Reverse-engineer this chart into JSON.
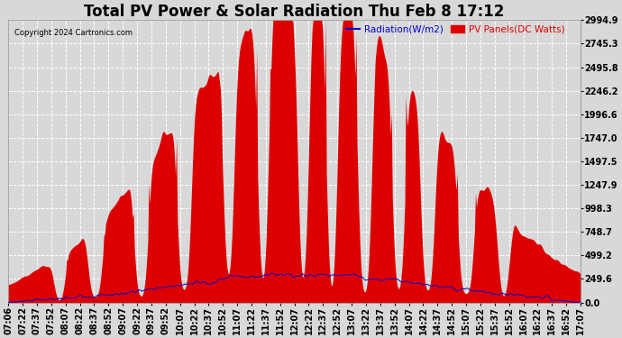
{
  "title": "Total PV Power & Solar Radiation Thu Feb 8 17:12",
  "copyright": "Copyright 2024 Cartronics.com",
  "legend_radiation": "Radiation(W/m2)",
  "legend_pv": "PV Panels(DC Watts)",
  "yticks": [
    0.0,
    249.6,
    499.2,
    748.7,
    998.3,
    1247.9,
    1497.5,
    1747.0,
    1996.6,
    2246.2,
    2495.8,
    2745.3,
    2994.9
  ],
  "ymax": 2994.9,
  "ymin": 0.0,
  "bar_color": "#dd0000",
  "line_color": "#0000cc",
  "background_color": "#d8d8d8",
  "grid_color": "#ffffff",
  "title_fontsize": 12,
  "tick_fontsize": 7,
  "time_labels": [
    "07:06",
    "07:22",
    "07:37",
    "07:52",
    "08:07",
    "08:22",
    "08:37",
    "08:52",
    "09:07",
    "09:22",
    "09:37",
    "09:52",
    "10:07",
    "10:22",
    "10:37",
    "10:52",
    "11:07",
    "11:22",
    "11:37",
    "11:52",
    "12:07",
    "12:22",
    "12:37",
    "12:52",
    "13:07",
    "13:22",
    "13:37",
    "13:52",
    "14:07",
    "14:22",
    "14:37",
    "14:52",
    "15:07",
    "15:22",
    "15:37",
    "15:52",
    "16:07",
    "16:22",
    "16:37",
    "16:52",
    "17:07"
  ]
}
